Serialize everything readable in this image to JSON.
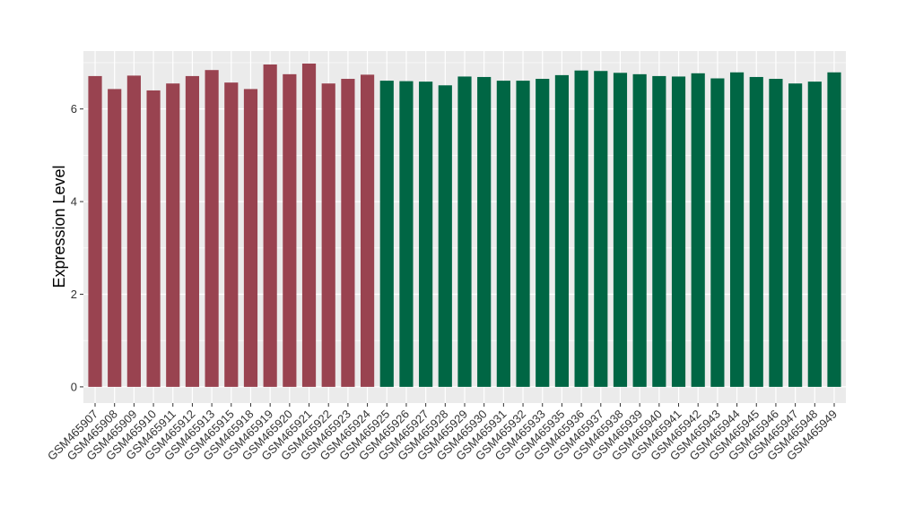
{
  "chart_data": {
    "type": "bar",
    "ylabel": "Expression Level",
    "xlabel": "",
    "ylim": [
      -0.35,
      7.25
    ],
    "yticks": [
      0,
      2,
      4,
      6
    ],
    "grid": true,
    "legend": "none",
    "colors": {
      "panel": "#EBEBEB",
      "grid": "#FFFFFF",
      "group1": "#994350",
      "group2": "#006644"
    },
    "categories": [
      "GSM465907",
      "GSM465908",
      "GSM465909",
      "GSM465910",
      "GSM465911",
      "GSM465912",
      "GSM465913",
      "GSM465915",
      "GSM465918",
      "GSM465919",
      "GSM465920",
      "GSM465921",
      "GSM465922",
      "GSM465923",
      "GSM465924",
      "GSM465925",
      "GSM465926",
      "GSM465927",
      "GSM465928",
      "GSM465929",
      "GSM465930",
      "GSM465931",
      "GSM465932",
      "GSM465933",
      "GSM465935",
      "GSM465936",
      "GSM465937",
      "GSM465938",
      "GSM465939",
      "GSM465940",
      "GSM465941",
      "GSM465942",
      "GSM465943",
      "GSM465944",
      "GSM465945",
      "GSM465946",
      "GSM465947",
      "GSM465948",
      "GSM465949"
    ],
    "values": [
      6.71,
      6.43,
      6.72,
      6.4,
      6.55,
      6.71,
      6.84,
      6.57,
      6.43,
      6.96,
      6.75,
      6.98,
      6.55,
      6.65,
      6.74,
      6.61,
      6.6,
      6.59,
      6.51,
      6.7,
      6.69,
      6.61,
      6.61,
      6.65,
      6.73,
      6.83,
      6.82,
      6.78,
      6.75,
      6.71,
      6.7,
      6.77,
      6.66,
      6.79,
      6.69,
      6.65,
      6.55,
      6.59,
      6.79
    ],
    "groups": [
      1,
      1,
      1,
      1,
      1,
      1,
      1,
      1,
      1,
      1,
      1,
      1,
      1,
      1,
      1,
      2,
      2,
      2,
      2,
      2,
      2,
      2,
      2,
      2,
      2,
      2,
      2,
      2,
      2,
      2,
      2,
      2,
      2,
      2,
      2,
      2,
      2,
      2,
      2
    ]
  }
}
